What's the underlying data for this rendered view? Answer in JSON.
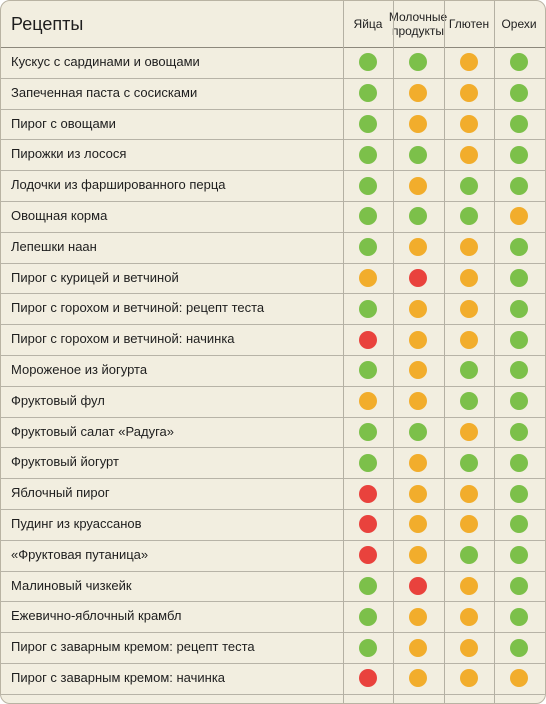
{
  "header": {
    "title": "Рецепты"
  },
  "columns": [
    {
      "key": "eggs",
      "label": "Яйца"
    },
    {
      "key": "dairy",
      "label": "Молочные\nпродукты"
    },
    {
      "key": "gluten",
      "label": "Глютен"
    },
    {
      "key": "nuts",
      "label": "Орехи"
    }
  ],
  "status_colors": {
    "green": "#7cc04a",
    "amber": "#f2ad2c",
    "red": "#e9423d"
  },
  "recipes": [
    {
      "name": "Кускус с сардинами и овощами",
      "statuses": [
        "green",
        "green",
        "amber",
        "green"
      ]
    },
    {
      "name": "Запеченная паста с сосисками",
      "statuses": [
        "green",
        "amber",
        "amber",
        "green"
      ]
    },
    {
      "name": "Пирог с овощами",
      "statuses": [
        "green",
        "amber",
        "amber",
        "green"
      ]
    },
    {
      "name": "Пирожки из лосося",
      "statuses": [
        "green",
        "green",
        "amber",
        "green"
      ]
    },
    {
      "name": "Лодочки из фаршированного перца",
      "statuses": [
        "green",
        "amber",
        "green",
        "green"
      ]
    },
    {
      "name": "Овощная корма",
      "statuses": [
        "green",
        "green",
        "green",
        "amber"
      ]
    },
    {
      "name": "Лепешки наан",
      "statuses": [
        "green",
        "amber",
        "amber",
        "green"
      ]
    },
    {
      "name": "Пирог с курицей и ветчиной",
      "statuses": [
        "amber",
        "red",
        "amber",
        "green"
      ]
    },
    {
      "name": "Пирог с горохом и ветчиной: рецепт теста",
      "statuses": [
        "green",
        "amber",
        "amber",
        "green"
      ]
    },
    {
      "name": "Пирог с горохом и ветчиной: начинка",
      "statuses": [
        "red",
        "amber",
        "amber",
        "green"
      ]
    },
    {
      "name": "Мороженое из йогурта",
      "statuses": [
        "green",
        "amber",
        "green",
        "green"
      ]
    },
    {
      "name": "Фруктовый фул",
      "statuses": [
        "amber",
        "amber",
        "green",
        "green"
      ]
    },
    {
      "name": "Фруктовый салат «Радуга»",
      "statuses": [
        "green",
        "green",
        "amber",
        "green"
      ]
    },
    {
      "name": "Фруктовый йогурт",
      "statuses": [
        "green",
        "amber",
        "green",
        "green"
      ]
    },
    {
      "name": "Яблочный пирог",
      "statuses": [
        "red",
        "amber",
        "amber",
        "green"
      ]
    },
    {
      "name": "Пудинг из круассанов",
      "statuses": [
        "red",
        "amber",
        "amber",
        "green"
      ]
    },
    {
      "name": "«Фруктовая путаница»",
      "statuses": [
        "red",
        "amber",
        "green",
        "green"
      ]
    },
    {
      "name": "Малиновый чизкейк",
      "statuses": [
        "green",
        "red",
        "amber",
        "green"
      ]
    },
    {
      "name": "Ежевично-яблочный крамбл",
      "statuses": [
        "green",
        "amber",
        "amber",
        "green"
      ]
    },
    {
      "name": "Пирог с заварным кремом: рецепт теста",
      "statuses": [
        "green",
        "amber",
        "amber",
        "green"
      ]
    },
    {
      "name": "Пирог с заварным кремом: начинка",
      "statuses": [
        "red",
        "amber",
        "amber",
        "amber"
      ]
    }
  ]
}
